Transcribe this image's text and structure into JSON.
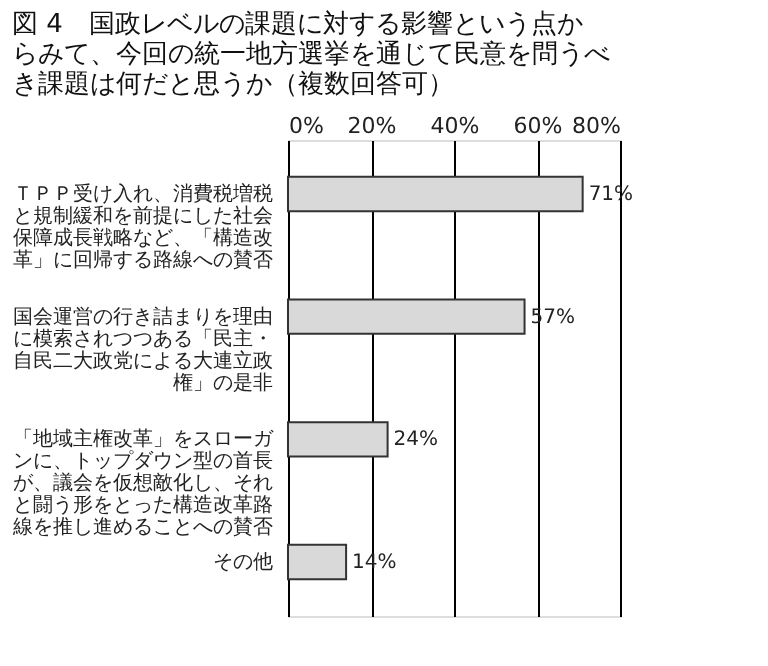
{
  "chart_data": {
    "type": "bar",
    "orientation": "horizontal",
    "title": "図 4　国政レベルの課題に対する影響という点からみて、今回の統一地方選挙を通じて民意を問うべき課題は何だと思うか（複数回答可）",
    "categories": [
      "ＴＰＰ受け入れ、消費税増税と規制緩和を前提にした社会保障成長戦略など、「構造改革」に回帰する路線への賛否",
      "国会運営の行き詰まりを理由に模索されつつある「民主・自民二大政党による大連立政権」の是非",
      "「地域主権改革」をスローガンに、トップダウン型の首長が、議会を仮想敵化し、それと闘う形をとった構造改革路線を推し進めることへの賛否",
      "その他"
    ],
    "values": [
      71,
      57,
      24,
      14
    ],
    "value_labels": [
      "71%",
      "57%",
      "24%",
      "14%"
    ],
    "color": "#d9d9d9",
    "xlim": [
      0,
      80
    ],
    "xticks": [
      {
        "value": 0,
        "label": "0%"
      },
      {
        "value": 20,
        "label": "20%"
      },
      {
        "value": 40,
        "label": "40%"
      },
      {
        "value": 60,
        "label": "60%"
      },
      {
        "value": 80,
        "label": "80%"
      }
    ],
    "grid": "x"
  }
}
